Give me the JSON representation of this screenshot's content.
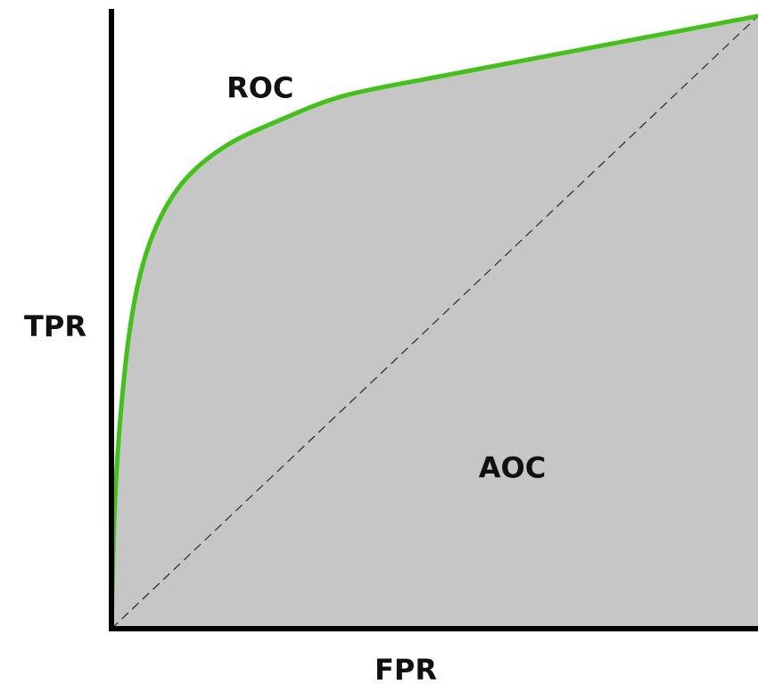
{
  "chart_data": {
    "type": "area",
    "title": "",
    "xlabel": "FPR",
    "ylabel": "TPR",
    "xlim": [
      0,
      1
    ],
    "ylim": [
      0,
      1
    ],
    "grid": false,
    "legend": "none",
    "series": [
      {
        "name": "",
        "role": "roc-curve",
        "x": [
          0,
          0.005,
          0.015,
          0.03,
          0.05,
          0.08,
          0.12,
          0.18,
          0.26,
          0.36,
          0.5,
          0.65,
          0.8,
          1.0
        ],
        "y": [
          0,
          0.2,
          0.36,
          0.5,
          0.6,
          0.68,
          0.74,
          0.79,
          0.83,
          0.87,
          0.9,
          0.93,
          0.96,
          1.0
        ]
      },
      {
        "name": "",
        "role": "diagonal",
        "x": [
          0,
          1
        ],
        "y": [
          0,
          1
        ]
      }
    ],
    "annotations": [
      {
        "text": "ROC",
        "x": 0.23,
        "y": 0.88
      },
      {
        "text": "AOC",
        "x": 0.62,
        "y": 0.26
      }
    ],
    "colors": {
      "curve": "#44c01a",
      "fill": "#c6c6c6",
      "axis": "#000000",
      "diagonal": "#333333"
    }
  }
}
